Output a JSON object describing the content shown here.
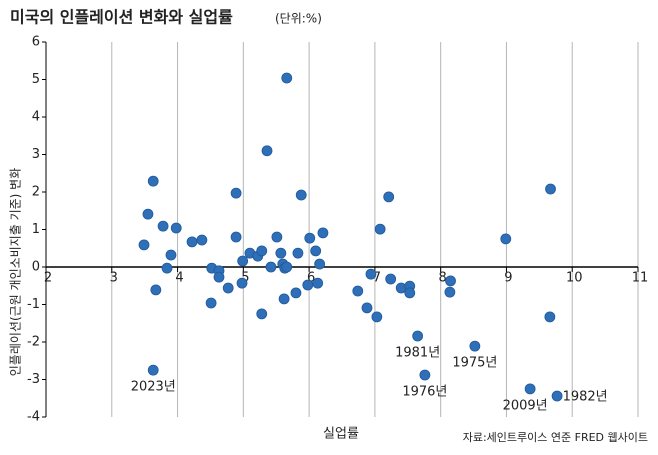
{
  "chart_data": {
    "type": "scatter",
    "title": "미국의 인플레이션 변화와 실업률",
    "subtitle": "(단위:%)",
    "xlabel": "실업률",
    "ylabel": "인플레이션(근원 개인소비지출 기준) 변화",
    "source": "자료:세인트루이스 연준 FRED 웹사이트",
    "xlim": [
      2,
      11
    ],
    "xticks": [
      2,
      3,
      4,
      5,
      6,
      7,
      8,
      9,
      10,
      11
    ],
    "ylim": [
      -4,
      6
    ],
    "yticks": [
      -4,
      -3,
      -2,
      -1,
      0,
      1,
      2,
      3,
      4,
      5,
      6
    ],
    "grid": true,
    "series": [
      {
        "color": "#2e6fb7",
        "x": [
          5.66,
          5.36,
          4.89,
          5.88,
          3.63,
          9.67,
          7.21,
          3.55,
          3.78,
          3.98,
          3.49,
          3.9,
          3.84,
          3.67,
          4.22,
          4.37,
          4.89,
          4.52,
          4.63,
          4.63,
          4.77,
          4.51,
          4.99,
          4.98,
          5.1,
          5.22,
          5.28,
          5.42,
          5.51,
          5.57,
          5.6,
          5.63,
          5.66,
          5.62,
          5.28,
          5.8,
          5.83,
          5.98,
          6.01,
          6.1,
          6.21,
          6.16,
          6.13,
          6.74,
          6.88,
          6.94,
          7.03,
          7.08,
          7.24,
          7.4,
          7.53,
          7.53,
          7.65,
          7.76,
          8.15,
          8.14,
          8.52,
          8.99,
          9.36,
          9.66,
          9.77,
          3.63
        ],
        "values": [
          5.04,
          3.1,
          1.97,
          1.92,
          2.29,
          2.08,
          1.87,
          1.41,
          1.09,
          1.04,
          0.59,
          0.32,
          -0.03,
          -0.61,
          0.67,
          0.72,
          0.8,
          -0.03,
          -0.1,
          -0.27,
          -0.56,
          -0.96,
          0.16,
          -0.43,
          0.37,
          0.29,
          0.43,
          0.0,
          0.8,
          0.37,
          0.08,
          -0.03,
          0.0,
          -0.85,
          -1.25,
          -0.69,
          0.37,
          -0.48,
          0.77,
          0.43,
          0.91,
          0.08,
          -0.43,
          -0.64,
          -1.09,
          -0.19,
          -1.33,
          1.01,
          -0.32,
          -0.56,
          -0.51,
          -0.69,
          -1.84,
          -2.88,
          -0.37,
          -0.67,
          -2.11,
          0.75,
          -3.25,
          -1.33,
          -3.44,
          -2.75
        ],
        "labels": [
          null,
          null,
          null,
          null,
          null,
          null,
          null,
          null,
          null,
          null,
          null,
          null,
          null,
          null,
          null,
          null,
          null,
          null,
          null,
          null,
          null,
          null,
          null,
          null,
          null,
          null,
          null,
          null,
          null,
          null,
          null,
          null,
          null,
          null,
          null,
          null,
          null,
          null,
          null,
          null,
          null,
          null,
          null,
          null,
          null,
          null,
          null,
          null,
          null,
          null,
          null,
          null,
          "1981년",
          "1976년",
          null,
          null,
          "1975년",
          null,
          "2009년",
          null,
          "1982년",
          "2023년"
        ]
      }
    ]
  }
}
